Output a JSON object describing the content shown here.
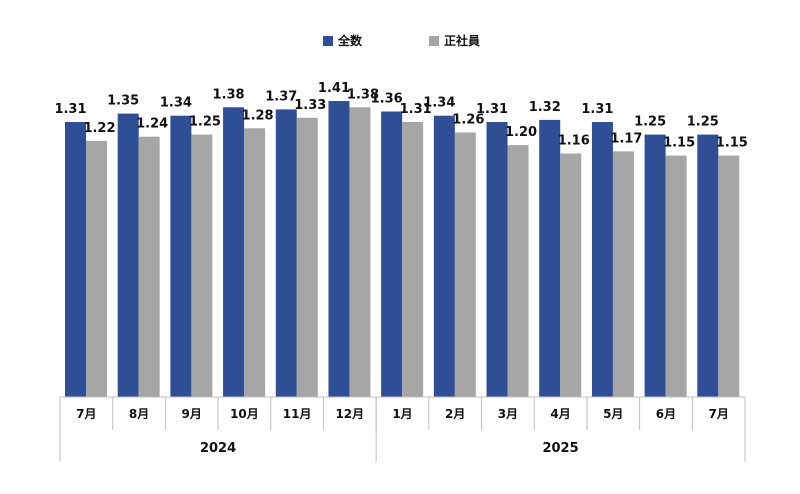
{
  "chart_data": {
    "type": "bar",
    "categories": [
      "7月",
      "8月",
      "9月",
      "10月",
      "11月",
      "12月",
      "1月",
      "2月",
      "3月",
      "4月",
      "5月",
      "6月",
      "7月"
    ],
    "groups": [
      {
        "label": "2024",
        "count": 6
      },
      {
        "label": "2025",
        "count": 7
      }
    ],
    "series": [
      {
        "name": "全数",
        "color": "#2E4E96",
        "values": [
          1.31,
          1.35,
          1.34,
          1.38,
          1.37,
          1.41,
          1.36,
          1.34,
          1.31,
          1.32,
          1.31,
          1.25,
          1.25
        ]
      },
      {
        "name": "正社員",
        "color": "#A6A6A6",
        "values": [
          1.22,
          1.24,
          1.25,
          1.28,
          1.33,
          1.38,
          1.31,
          1.26,
          1.2,
          1.16,
          1.17,
          1.15,
          1.15
        ]
      }
    ],
    "ylim": [
      0,
      1.41
    ],
    "legend": "top-center",
    "grid": false
  }
}
